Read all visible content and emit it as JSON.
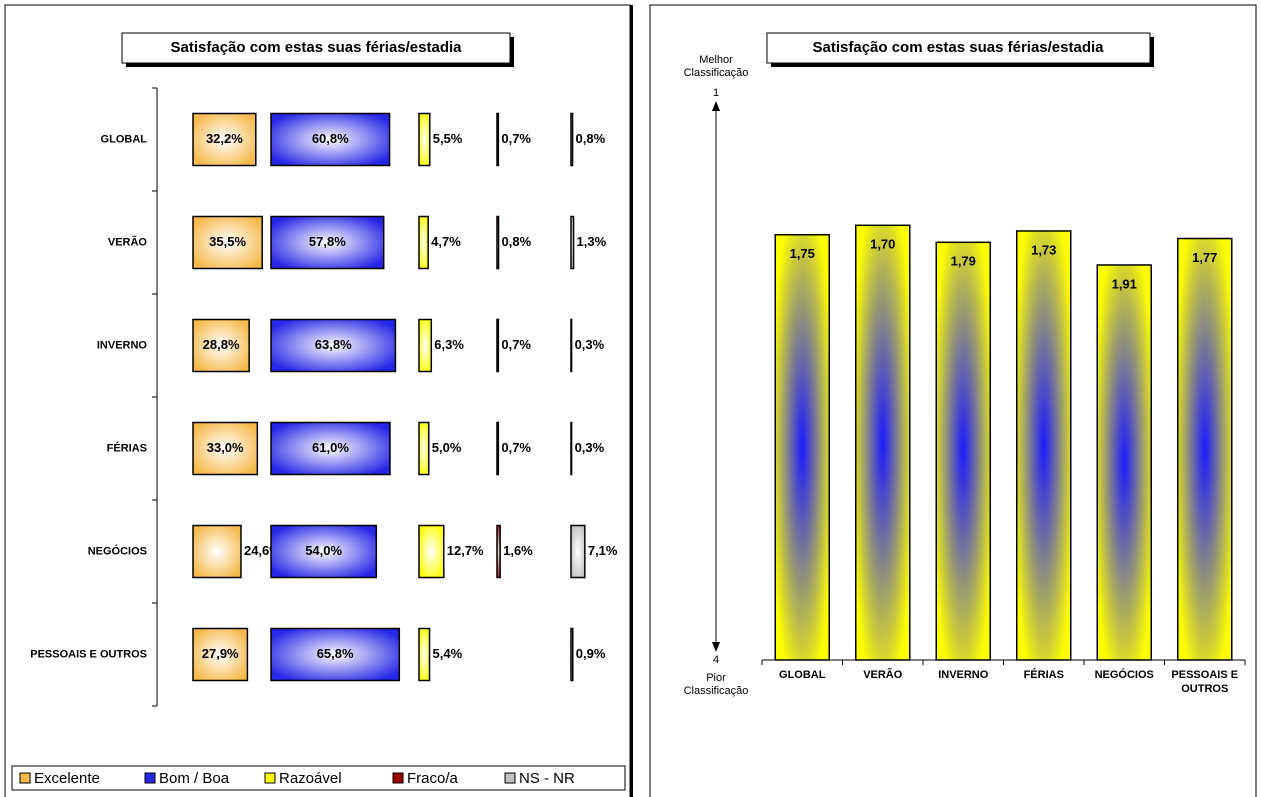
{
  "chart_data": [
    {
      "type": "hbar-columns",
      "title": "Satisfação com estas suas férias/estadia",
      "categories": [
        "GLOBAL",
        "VERÃO",
        "INVERNO",
        "FÉRIAS",
        "NEGÓCIOS",
        "PESSOAIS E OUTROS"
      ],
      "series": [
        {
          "name": "Excelente",
          "color": "#f6b94a",
          "values": [
            32.2,
            35.5,
            28.8,
            33.0,
            24.6,
            27.9
          ],
          "value_labels": [
            "32,2%",
            "35,5%",
            "28,8%",
            "33,0%",
            "24,6%",
            "27,9%"
          ]
        },
        {
          "name": "Bom / Boa",
          "color": "#2626e6",
          "values": [
            60.8,
            57.8,
            63.8,
            61.0,
            54.0,
            65.8
          ],
          "value_labels": [
            "60,8%",
            "57,8%",
            "63,8%",
            "61,0%",
            "54,0%",
            "65,8%"
          ]
        },
        {
          "name": "Razoável",
          "color": "#ffff00",
          "values": [
            5.5,
            4.7,
            6.3,
            5.0,
            12.7,
            5.4
          ],
          "value_labels": [
            "5,5%",
            "4,7%",
            "6,3%",
            "5,0%",
            "12,7%",
            "5,4%"
          ]
        },
        {
          "name": "Fraco/a",
          "color": "#990000",
          "values": [
            0.7,
            0.8,
            0.7,
            0.7,
            1.6,
            null
          ],
          "value_labels": [
            "0,7%",
            "0,8%",
            "0,7%",
            "0,7%",
            "1,6%",
            null
          ]
        },
        {
          "name": "NS - NR",
          "color": "#c0c0c0",
          "values": [
            0.8,
            1.3,
            0.3,
            0.3,
            7.1,
            0.9
          ],
          "value_labels": [
            "0,8%",
            "1,3%",
            "0,3%",
            "0,3%",
            "7,1%",
            "0,9%"
          ]
        }
      ],
      "legend": "bottom"
    },
    {
      "type": "bar",
      "title": "Satisfação com estas suas férias/estadia",
      "categories": [
        "GLOBAL",
        "VERÃO",
        "INVERNO",
        "FÉRIAS",
        "NEGÓCIOS",
        "PESSOAIS E OUTROS"
      ],
      "values": [
        1.75,
        1.7,
        1.79,
        1.73,
        1.91,
        1.77
      ],
      "value_labels": [
        "1,75",
        "1,70",
        "1,79",
        "1,73",
        "1,91",
        "1,77"
      ],
      "color": "#ffff00",
      "center_color": "#1a1aff",
      "ylim": [
        4,
        1
      ],
      "yticks": [
        1,
        4
      ],
      "y_label_top": "Melhor Classificação",
      "y_label_bottom": "Pior Classificação"
    }
  ]
}
